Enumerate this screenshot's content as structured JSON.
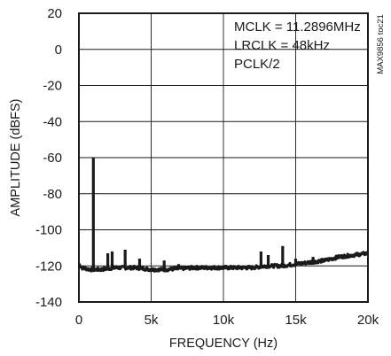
{
  "chart_data": {
    "type": "line",
    "xlabel": "FREQUENCY (Hz)",
    "ylabel": "AMPLITUDE (dBFS)",
    "xlim": [
      0,
      20000
    ],
    "ylim": [
      -140,
      20
    ],
    "grid": true,
    "x_ticks": [
      0,
      5000,
      10000,
      15000,
      20000
    ],
    "x_tick_labels": [
      "0",
      "5k",
      "10k",
      "15k",
      "20k"
    ],
    "y_ticks": [
      20,
      0,
      -20,
      -40,
      -60,
      -80,
      -100,
      -120,
      -140
    ],
    "y_tick_labels": [
      "20",
      "0",
      "-20",
      "-40",
      "-60",
      "-80",
      "-100",
      "-120",
      "-140"
    ],
    "annotations": [
      "MCLK = 11.2896MHz",
      "LRCLK = 48kHz",
      "PCLK/2"
    ],
    "side_label": "MAX9856 toc21",
    "series": [
      {
        "noise_floor": [
          [
            0,
            -119
          ],
          [
            200,
            -121
          ],
          [
            800,
            -122
          ],
          [
            1500,
            -122
          ],
          [
            2500,
            -121
          ],
          [
            4000,
            -121
          ],
          [
            5000,
            -122
          ],
          [
            6000,
            -122
          ],
          [
            8000,
            -121
          ],
          [
            10000,
            -121
          ],
          [
            12000,
            -121
          ],
          [
            13000,
            -120
          ],
          [
            14000,
            -120
          ],
          [
            15000,
            -119
          ],
          [
            16000,
            -118
          ],
          [
            17000,
            -117
          ],
          [
            18000,
            -115
          ],
          [
            19000,
            -114
          ],
          [
            20000,
            -113
          ]
        ],
        "spurs": [
          [
            1000,
            -60
          ],
          [
            2000,
            -113
          ],
          [
            2300,
            -112
          ],
          [
            3200,
            -111
          ],
          [
            4200,
            -116
          ],
          [
            5900,
            -117
          ],
          [
            6900,
            -119
          ],
          [
            12600,
            -112
          ],
          [
            13100,
            -114
          ],
          [
            14100,
            -109
          ],
          [
            15000,
            -116
          ],
          [
            16200,
            -115
          ]
        ]
      }
    ]
  }
}
